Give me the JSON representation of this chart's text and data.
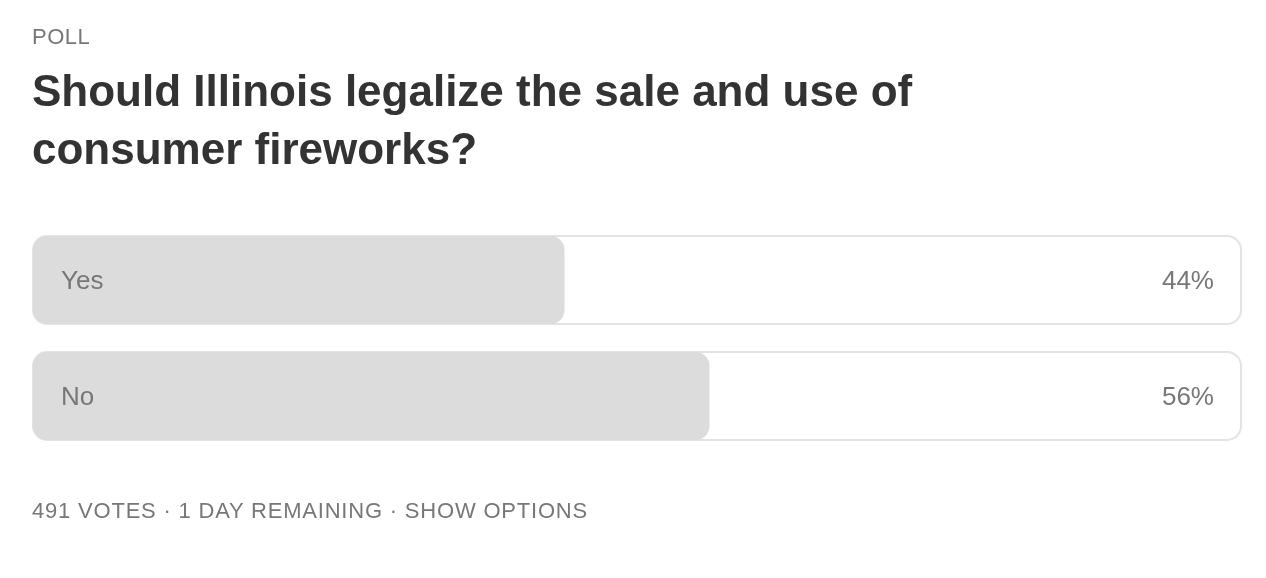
{
  "chart_data": {
    "type": "bar",
    "orientation": "horizontal",
    "subtitle": "POLL",
    "title": "Should Illinois legalize the sale and use of consumer fireworks?",
    "categories": [
      "Yes",
      "No"
    ],
    "values": [
      44,
      56
    ],
    "value_labels": [
      "44%",
      "56%"
    ],
    "color": "#dcdcdc",
    "xlim": [
      0,
      100
    ],
    "tick_labels": false,
    "grid": false,
    "legend": false,
    "annotations": [
      "491 VOTES · 1 DAY REMAINING · SHOW OPTIONS"
    ]
  }
}
